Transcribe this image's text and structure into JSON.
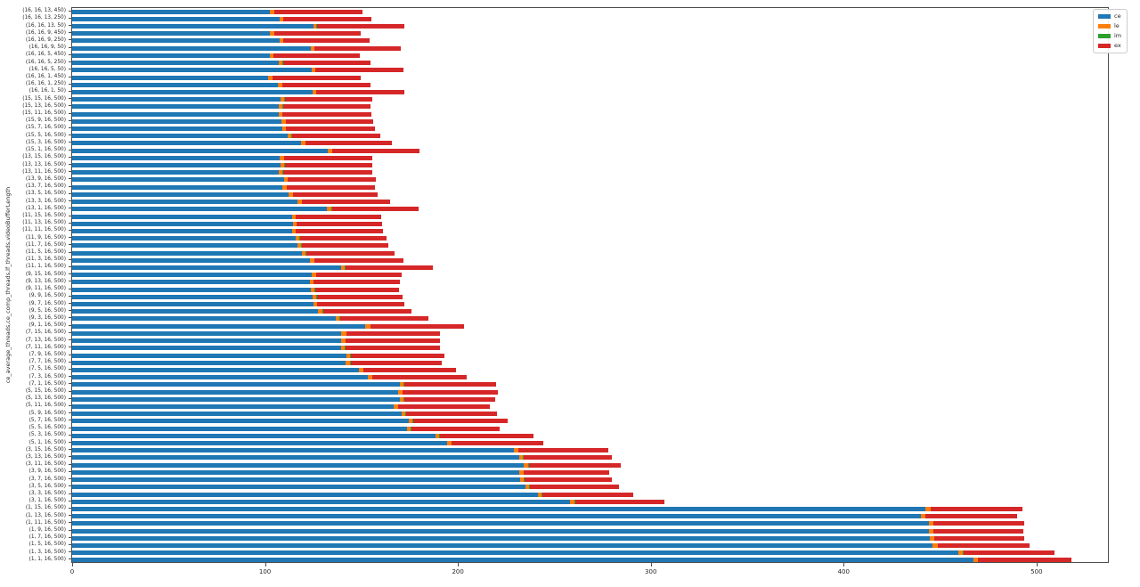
{
  "chart_data": {
    "type": "bar",
    "orientation": "horizontal_stacked",
    "title": "",
    "xlabel": "",
    "ylabel": "ce_average_threads,ce_comp_threads,lf_threads,videoBufferLength",
    "xlim": [
      0,
      537
    ],
    "xticks": [
      0,
      100,
      200,
      300,
      400,
      500
    ],
    "grid": false,
    "legend_position": "upper right",
    "categories": [
      "(16, 16, 13, 450)",
      "(16, 16, 13, 250)",
      "(16, 16, 13, 50)",
      "(16, 16, 9, 450)",
      "(16, 16, 9, 250)",
      "(16, 16, 9, 50)",
      "(16, 16, 5, 450)",
      "(16, 16, 5, 250)",
      "(16, 16, 5, 50)",
      "(16, 16, 1, 450)",
      "(16, 16, 1, 250)",
      "(16, 16, 1, 50)",
      "(15, 15, 16, 500)",
      "(15, 13, 16, 500)",
      "(15, 11, 16, 500)",
      "(15, 9, 16, 500)",
      "(15, 7, 16, 500)",
      "(15, 5, 16, 500)",
      "(15, 3, 16, 500)",
      "(15, 1, 16, 500)",
      "(13, 15, 16, 500)",
      "(13, 13, 16, 500)",
      "(13, 11, 16, 500)",
      "(13, 9, 16, 500)",
      "(13, 7, 16, 500)",
      "(13, 5, 16, 500)",
      "(13, 3, 16, 500)",
      "(13, 1, 16, 500)",
      "(11, 15, 16, 500)",
      "(11, 13, 16, 500)",
      "(11, 11, 16, 500)",
      "(11, 9, 16, 500)",
      "(11, 7, 16, 500)",
      "(11, 5, 16, 500)",
      "(11, 3, 16, 500)",
      "(11, 1, 16, 500)",
      "(9, 15, 16, 500)",
      "(9, 13, 16, 500)",
      "(9, 11, 16, 500)",
      "(9, 9, 16, 500)",
      "(9, 7, 16, 500)",
      "(9, 5, 16, 500)",
      "(9, 3, 16, 500)",
      "(9, 1, 16, 500)",
      "(7, 15, 16, 500)",
      "(7, 13, 16, 500)",
      "(7, 11, 16, 500)",
      "(7, 9, 16, 500)",
      "(7, 7, 16, 500)",
      "(7, 5, 16, 500)",
      "(7, 3, 16, 500)",
      "(7, 1, 16, 500)",
      "(5, 15, 16, 500)",
      "(5, 13, 16, 500)",
      "(5, 11, 16, 500)",
      "(5, 9, 16, 500)",
      "(5, 7, 16, 500)",
      "(5, 5, 16, 500)",
      "(5, 3, 16, 500)",
      "(5, 1, 16, 500)",
      "(3, 15, 16, 500)",
      "(3, 13, 16, 500)",
      "(3, 11, 16, 500)",
      "(3, 9, 16, 500)",
      "(3, 7, 16, 500)",
      "(3, 5, 16, 500)",
      "(3, 3, 16, 500)",
      "(3, 1, 16, 500)",
      "(1, 15, 16, 500)",
      "(1, 13, 16, 500)",
      "(1, 11, 16, 500)",
      "(1, 9, 16, 500)",
      "(1, 7, 16, 500)",
      "(1, 5, 16, 500)",
      "(1, 3, 16, 500)",
      "(1, 1, 16, 500)"
    ],
    "series": [
      {
        "name": "ce",
        "color": "#1f77b4",
        "values": [
          102.4,
          107.5,
          124.9,
          102.4,
          107.5,
          123.6,
          102.4,
          107.0,
          124.1,
          101.8,
          106.6,
          124.5,
          107.9,
          107.3,
          107.0,
          108.5,
          108.9,
          111.6,
          118.7,
          132.5,
          107.6,
          107.9,
          107.3,
          109.8,
          109.2,
          112.2,
          116.6,
          132.2,
          114.1,
          114.4,
          114.1,
          115.9,
          116.6,
          119.3,
          123.3,
          139.3,
          124.2,
          123.3,
          123.9,
          124.5,
          125.1,
          127.6,
          136.5,
          151.9,
          139.6,
          139.3,
          139.3,
          142.1,
          141.7,
          148.5,
          153.5,
          170.1,
          169.1,
          169.7,
          166.7,
          170.7,
          174.4,
          173.4,
          188.2,
          194.3,
          229.1,
          231.6,
          234.3,
          231.9,
          232.2,
          234.9,
          241.4,
          258.3,
          442.5,
          440.0,
          444.3,
          444.3,
          444.6,
          446.2,
          459.4,
          467.1
        ]
      },
      {
        "name": "le",
        "color": "#ff7f0e",
        "values": [
          2.2,
          1.8,
          1.8,
          2.2,
          1.8,
          1.9,
          1.8,
          2.2,
          1.8,
          2.0,
          2.3,
          1.9,
          2.2,
          1.9,
          1.9,
          2.2,
          1.8,
          2.2,
          2.1,
          2.2,
          2.2,
          2.2,
          1.9,
          1.8,
          2.1,
          2.2,
          2.4,
          2.2,
          1.8,
          1.8,
          1.8,
          1.9,
          2.1,
          1.9,
          2.2,
          2.2,
          2.2,
          1.8,
          1.9,
          2.2,
          1.9,
          2.2,
          2.2,
          2.8,
          2.5,
          2.4,
          2.2,
          2.1,
          2.5,
          2.5,
          2.1,
          1.8,
          2.2,
          2.2,
          2.1,
          2.1,
          2.1,
          2.2,
          2.2,
          2.2,
          2.1,
          2.1,
          2.2,
          2.1,
          2.1,
          2.2,
          2.1,
          2.2,
          2.5,
          2.2,
          2.2,
          2.2,
          2.2,
          2.5,
          2.5,
          2.5
        ]
      },
      {
        "name": "im",
        "color": "#2ca02c",
        "values": [
          0.2,
          0.2,
          0.2,
          0.2,
          0.2,
          0.2,
          0.2,
          0.2,
          0.2,
          0.2,
          0.2,
          0.2,
          0.2,
          0.2,
          0.2,
          0.2,
          0.2,
          0.2,
          0.2,
          0.2,
          0.2,
          0.2,
          0.2,
          0.2,
          0.2,
          0.2,
          0.2,
          0.2,
          0.2,
          0.2,
          0.2,
          0.2,
          0.2,
          0.2,
          0.2,
          0.2,
          0.2,
          0.2,
          0.2,
          0.2,
          0.2,
          0.2,
          0.2,
          0.2,
          0.2,
          0.2,
          0.2,
          0.2,
          0.2,
          0.2,
          0.2,
          0.2,
          0.2,
          0.2,
          0.2,
          0.2,
          0.2,
          0.2,
          0.2,
          0.2,
          0.2,
          0.2,
          0.2,
          0.2,
          0.2,
          0.2,
          0.2,
          0.2,
          0.2,
          0.2,
          0.2,
          0.2,
          0.2,
          0.2,
          0.2,
          0.2
        ]
      },
      {
        "name": "ex",
        "color": "#d62728",
        "values": [
          45.8,
          45.7,
          45.3,
          44.9,
          44.9,
          44.7,
          44.8,
          45.2,
          45.7,
          45.6,
          45.6,
          45.5,
          45.5,
          45.5,
          46.1,
          45.2,
          46.1,
          45.8,
          44.9,
          45.2,
          45.5,
          45.5,
          46.1,
          45.5,
          45.5,
          43.9,
          45.5,
          45.2,
          44.0,
          44.3,
          44.9,
          44.9,
          44.9,
          45.8,
          46.1,
          45.2,
          44.3,
          44.6,
          43.6,
          44.3,
          45.2,
          45.8,
          45.8,
          48.3,
          48.3,
          49.0,
          49.2,
          48.6,
          47.1,
          47.9,
          48.6,
          47.7,
          49.2,
          47.1,
          47.7,
          47.1,
          48.9,
          45.8,
          48.5,
          47.7,
          46.8,
          46.1,
          47.6,
          44.3,
          45.2,
          46.1,
          47.1,
          46.2,
          47.3,
          47.3,
          46.7,
          46.4,
          46.4,
          47.3,
          47.3,
          48.5
        ]
      }
    ],
    "legend_labels": [
      "ce",
      "le",
      "im",
      "ex"
    ]
  },
  "colors": {
    "ce": "#1f77b4",
    "le": "#ff7f0e",
    "im": "#2ca02c",
    "ex": "#d62728",
    "spine": "#4d4d4d",
    "text": "#262626"
  }
}
